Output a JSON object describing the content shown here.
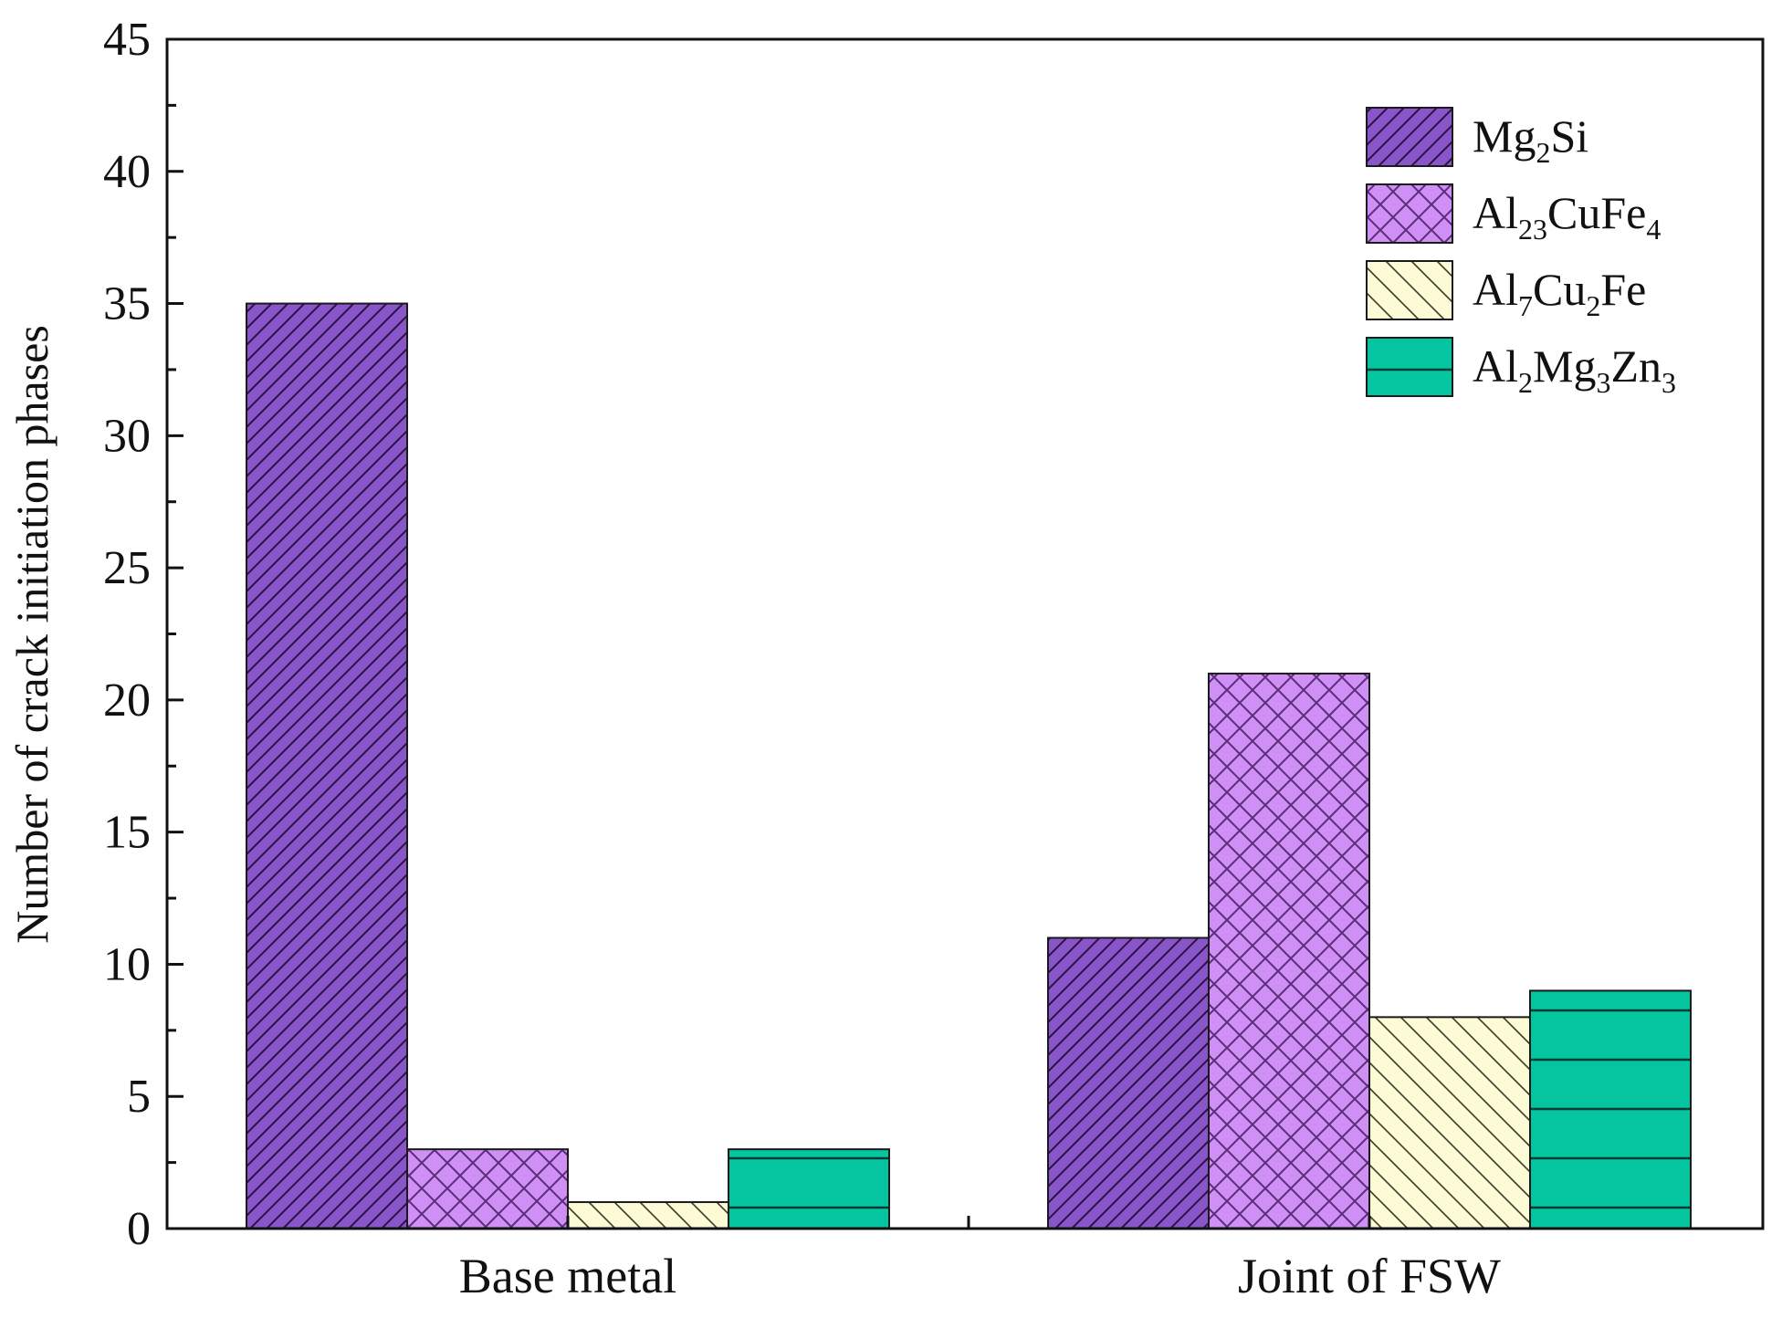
{
  "chart_data": {
    "type": "bar",
    "ylabel": "Number of crack initiation phases",
    "xlabel": "",
    "ylim": [
      0,
      45
    ],
    "yticks": [
      0,
      5,
      10,
      15,
      20,
      25,
      30,
      35,
      40,
      45
    ],
    "grid": false,
    "legend_position": "top-right",
    "categories": [
      "Base metal",
      "Joint of FSW"
    ],
    "series": [
      {
        "name": "Mg2Si",
        "legend_parts": [
          [
            "Mg",
            ""
          ],
          [
            "2",
            "sub"
          ],
          [
            "Si",
            ""
          ]
        ],
        "values": [
          35,
          11
        ],
        "color": "#8a55c9",
        "pattern": "diagonal"
      },
      {
        "name": "Al23CuFe4",
        "legend_parts": [
          [
            "Al",
            ""
          ],
          [
            "23",
            "sub"
          ],
          [
            "CuFe",
            ""
          ],
          [
            "4",
            "sub"
          ]
        ],
        "values": [
          3,
          21
        ],
        "color": "#cf8ff5",
        "pattern": "crosshatch"
      },
      {
        "name": "Al7Cu2Fe",
        "legend_parts": [
          [
            "Al",
            ""
          ],
          [
            "7",
            "sub"
          ],
          [
            "Cu",
            ""
          ],
          [
            "2",
            "sub"
          ],
          [
            "Fe",
            ""
          ]
        ],
        "values": [
          1,
          8
        ],
        "color": "#fdfbd6",
        "pattern": "backdiagonal"
      },
      {
        "name": "Al2Mg3Zn3",
        "legend_parts": [
          [
            "Al",
            ""
          ],
          [
            "2",
            "sub"
          ],
          [
            "Mg",
            ""
          ],
          [
            "3",
            "sub"
          ],
          [
            "Zn",
            ""
          ],
          [
            "3",
            "sub"
          ]
        ],
        "values": [
          3,
          9
        ],
        "color": "#05c4a0",
        "pattern": "horizontal"
      }
    ]
  }
}
